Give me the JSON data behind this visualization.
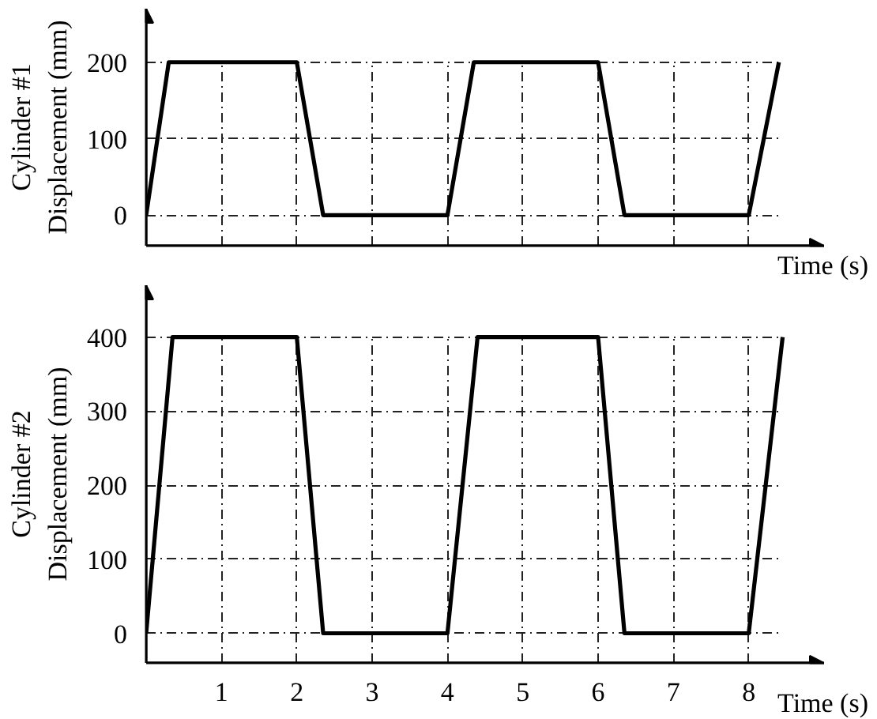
{
  "chart_data": [
    {
      "type": "line",
      "xlabel": "Time (s)",
      "ylabel": "Cylinder #1\nDisplacement (mm)",
      "x": [
        0,
        0.3,
        2,
        2.35,
        4,
        4.35,
        6,
        6.35,
        8,
        8.4
      ],
      "series": [
        {
          "color": "#000000",
          "values": [
            0,
            200,
            200,
            0,
            0,
            200,
            200,
            0,
            0,
            200
          ]
        }
      ],
      "xlim": [
        0,
        9
      ],
      "ylim": [
        -40,
        270
      ],
      "xticks": [
        1,
        2,
        3,
        4,
        5,
        6,
        7,
        8
      ],
      "yticks": [
        0,
        100,
        200
      ],
      "grid": true,
      "tick_labels": "y",
      "line_style": "solid"
    },
    {
      "type": "line",
      "xlabel": "Time (s)",
      "ylabel": "Cylinder #2\nDisplacement (mm)",
      "x": [
        0,
        0.35,
        2,
        2.35,
        4,
        4.4,
        6,
        6.35,
        8,
        8.45
      ],
      "series": [
        {
          "color": "#000000",
          "values": [
            0,
            400,
            400,
            0,
            0,
            400,
            400,
            0,
            0,
            400
          ]
        }
      ],
      "xlim": [
        0,
        9
      ],
      "ylim": [
        -40,
        470
      ],
      "xticks": [
        1,
        2,
        3,
        4,
        5,
        6,
        7,
        8
      ],
      "yticks": [
        0,
        100,
        200,
        300,
        400
      ],
      "grid": true,
      "line_style": "solid"
    }
  ]
}
